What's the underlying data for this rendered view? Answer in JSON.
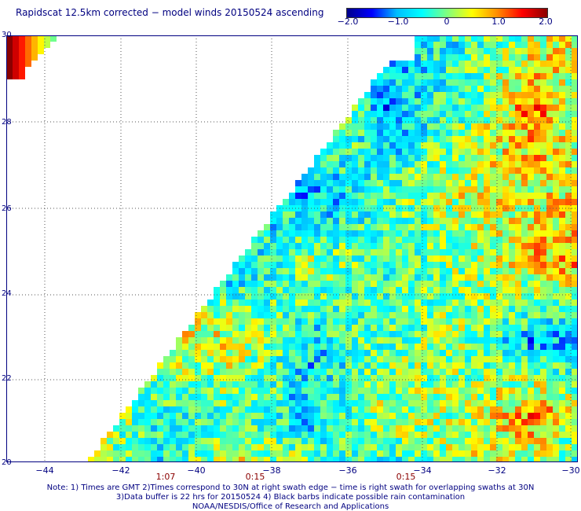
{
  "title": "Rapidscat 12.5km corrected − model winds 20150524 ascending",
  "colorbar": {
    "ticks": [
      "−2.0",
      "−1.0",
      "0",
      "1.0",
      "2.0"
    ],
    "range": [
      -2.0,
      2.0
    ],
    "colors": [
      "#00008b",
      "#0000ff",
      "#00bfff",
      "#00ffff",
      "#7fff7f",
      "#ffff00",
      "#ff8c00",
      "#ff0000",
      "#8b0000"
    ]
  },
  "map": {
    "lat_labels": [
      "30",
      "28",
      "26",
      "24",
      "22",
      "20"
    ],
    "lon_labels": [
      "−44",
      "−42",
      "−40",
      "−38",
      "−36",
      "−34",
      "−32",
      "−30"
    ],
    "lat_range": [
      20,
      30
    ],
    "lon_range": [
      -45,
      -30
    ],
    "grid": "dotted",
    "time_labels": [
      "1:07",
      "0:15",
      "0:15"
    ]
  },
  "notes": {
    "line1": "Note: 1) Times are GMT 2)Times correspond to 30N at right swath edge − time is right swath for overlapping swaths at 30N",
    "line2": "3)Data buffer is 22 hrs for 20150524 4) Black barbs indicate possible rain contamination",
    "line3": "NOAA/NESDIS/Office of Research and Applications"
  }
}
